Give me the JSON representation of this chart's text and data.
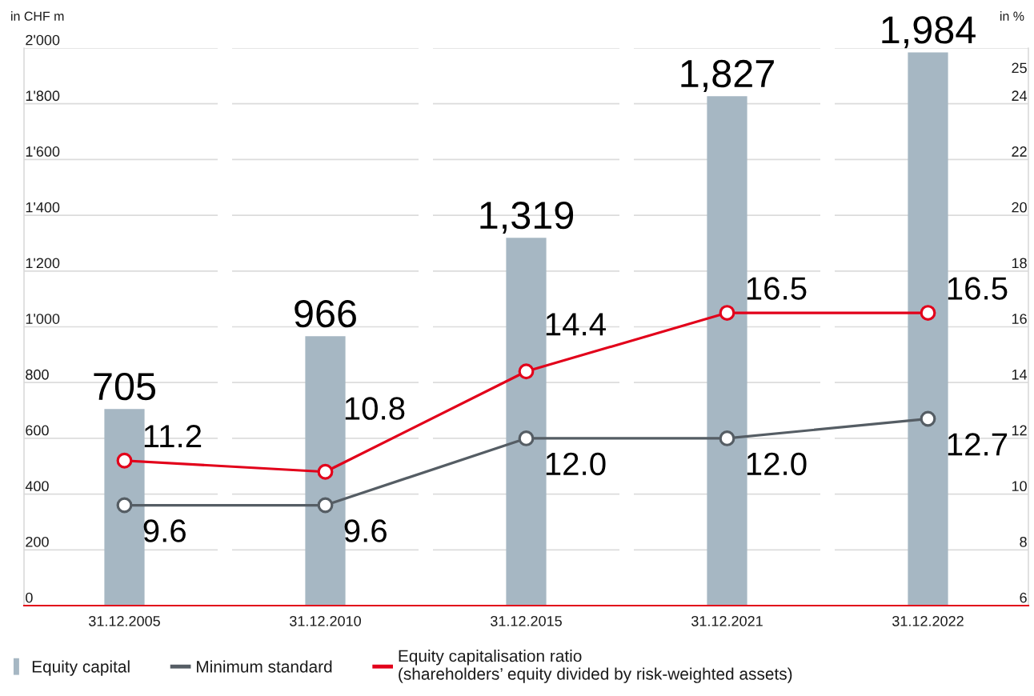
{
  "chart_data": {
    "type": "bar",
    "ylabel": "in CHF m",
    "y2label": "in %",
    "categories": [
      "31.12.2005",
      "31.12.2010",
      "31.12.2015",
      "31.12.2021",
      "31.12.2022"
    ],
    "series": [
      {
        "name": "Equity capital",
        "color": "#a6b7c3",
        "values": [
          705,
          966,
          1319,
          1827,
          1984
        ],
        "value_labels": [
          "705",
          "966",
          "1,319",
          "1,827",
          "1,984"
        ]
      },
      {
        "name": "Minimum standard",
        "type": "line",
        "axis": "y2",
        "color": "#555d64",
        "values": [
          9.6,
          9.6,
          12.0,
          12.0,
          12.7
        ],
        "value_labels": [
          "9.6",
          "9.6",
          "12.0",
          "12.0",
          "12.7"
        ]
      },
      {
        "name": "Equity capitalisation ratio\n(shareholders’ equity divided by risk-weighted assets)",
        "type": "line",
        "axis": "y2",
        "color": "#e2001a",
        "values": [
          11.2,
          10.8,
          14.4,
          16.5,
          16.5
        ],
        "value_labels": [
          "11.2",
          "10.8",
          "14.4",
          "16.5",
          "16.5"
        ]
      }
    ],
    "ylim": [
      0,
      2000
    ],
    "yticks": [
      0,
      200,
      400,
      600,
      800,
      {
        "value": 1000,
        "label": "1'000"
      },
      {
        "value": 1200,
        "label": "1'200"
      },
      {
        "value": 1400,
        "label": "1'400"
      },
      {
        "value": 1600,
        "label": "1'600"
      },
      {
        "value": 1800,
        "label": "1'800"
      },
      {
        "value": 2000,
        "label": "2'000"
      }
    ],
    "y2lim": [
      6,
      26
    ],
    "y2ticks": [
      6,
      8,
      10,
      12,
      14,
      16,
      18,
      20,
      22,
      24,
      25
    ],
    "grid": "y",
    "legend": "bottom",
    "marker": "circle",
    "line_style": "solid"
  }
}
